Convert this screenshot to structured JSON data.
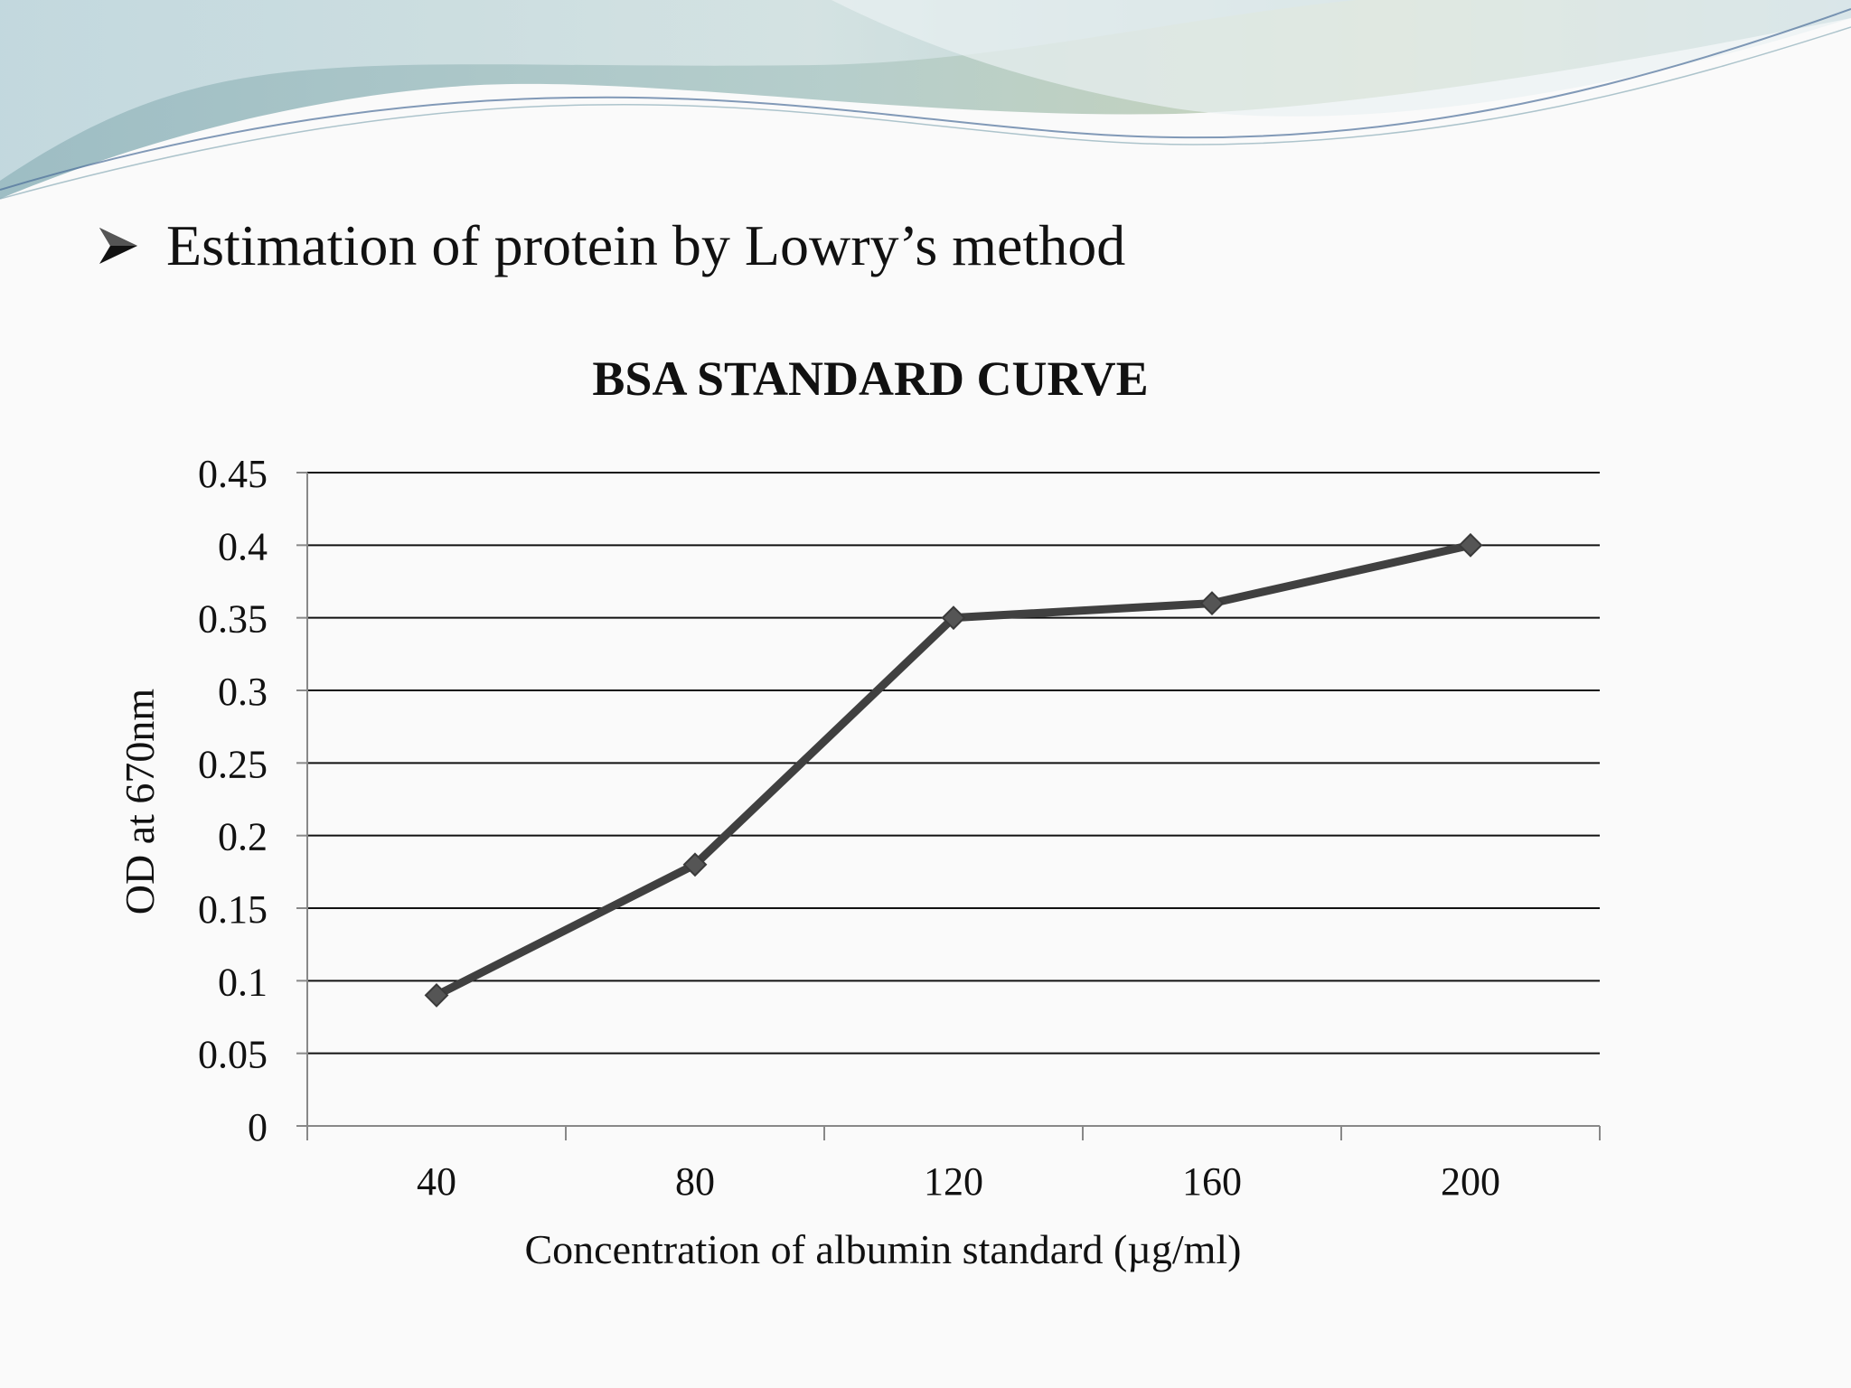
{
  "slide": {
    "bullet_text": "Estimation of protein by Lowry’s method"
  },
  "chart_data": {
    "type": "line",
    "title": "BSA STANDARD CURVE",
    "xlabel": "Concentration of albumin standard (µg/ml)",
    "ylabel": "OD at 670nm",
    "categories": [
      "40",
      "80",
      "120",
      "160",
      "200"
    ],
    "series": [
      {
        "values": [
          0.09,
          0.18,
          0.35,
          0.36,
          0.4
        ],
        "color": "#404040"
      }
    ],
    "ylim": [
      0,
      0.45
    ],
    "yticks": [
      "0",
      "0.05",
      "0.1",
      "0.15",
      "0.2",
      "0.25",
      "0.3",
      "0.35",
      "0.4",
      "0.45"
    ],
    "grid": true,
    "legend": "none",
    "marker": "diamond"
  },
  "colors": {
    "line": "#404040",
    "gridline": "#111111",
    "banner_teal": "#8fb9b8",
    "banner_blue": "#a9c8d3",
    "banner_green": "#b9c9a4"
  }
}
